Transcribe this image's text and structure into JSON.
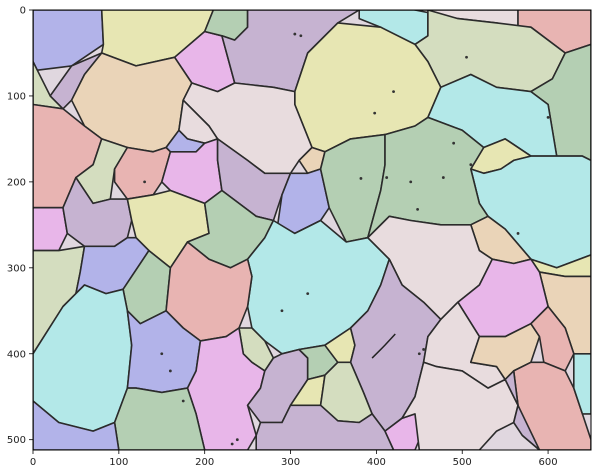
{
  "figure": {
    "description_kind": "segmented grain micrograph with matplotlib axes",
    "x_axis": {
      "ticks": [
        "0",
        "100",
        "200",
        "300",
        "400",
        "500",
        "600"
      ],
      "range": [
        0,
        650
      ]
    },
    "y_axis": {
      "ticks": [
        "0",
        "100",
        "200",
        "300",
        "400",
        "500"
      ],
      "range": [
        0,
        512
      ],
      "inverted": true
    },
    "grid": false,
    "colors": {
      "blue": "#b2b3e9",
      "yellow": "#e7e6b3",
      "pink": "#e8b6e9",
      "green": "#b4cfb3",
      "mauve": "#c6b3d1",
      "peach": "#ead4b8",
      "rose": "#e8b4b2",
      "cyan": "#b3e8e8",
      "sage": "#d4ddbf",
      "lavender": "#e8dcde",
      "frame": "#000000"
    }
  }
}
